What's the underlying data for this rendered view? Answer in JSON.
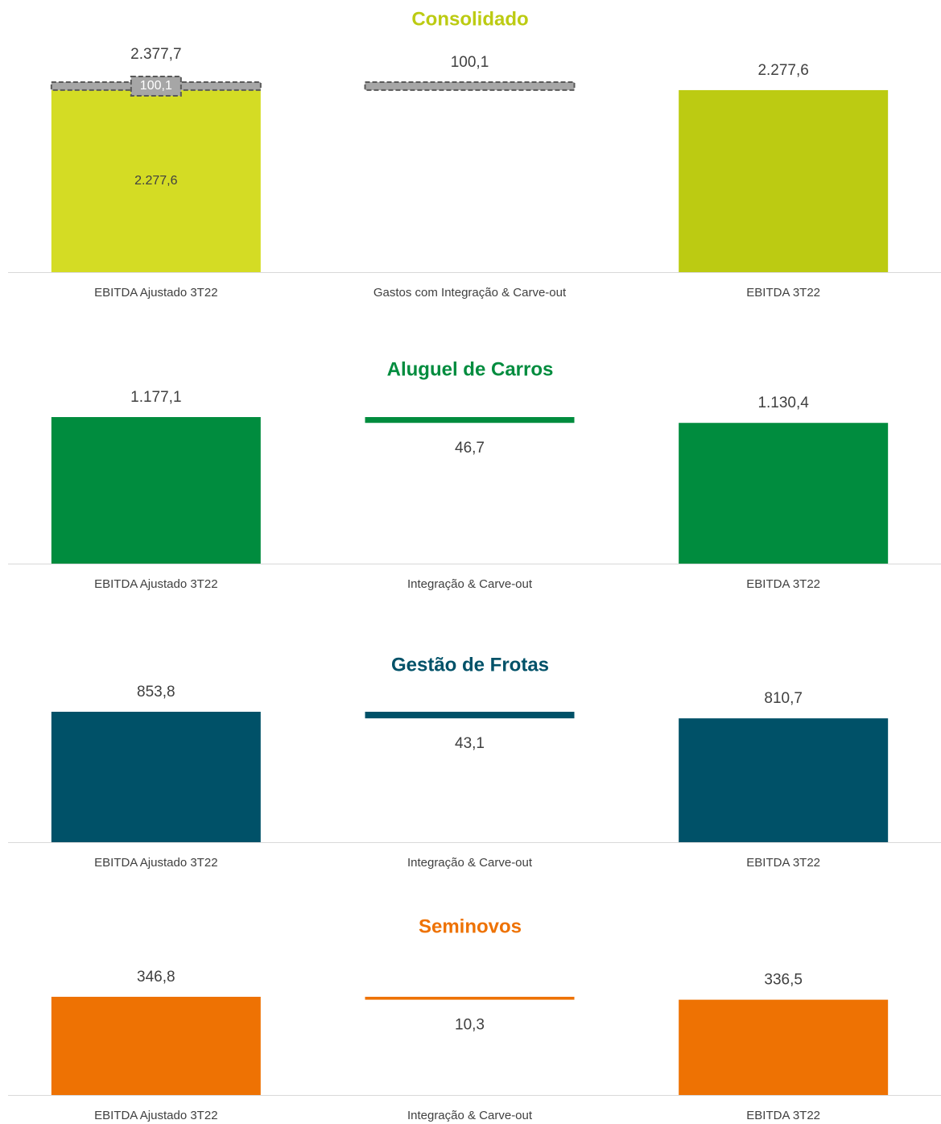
{
  "chart_data": [
    {
      "type": "waterfall",
      "title": "Consolidado",
      "title_color": "#bccb12",
      "categories": [
        "EBITDA Ajustado 3T22",
        "Gastos com Integração & Carve-out",
        "EBITDA 3T22"
      ],
      "measure": [
        "total",
        "decrease",
        "total"
      ],
      "segments": [
        {
          "values": [
            2277.6,
            null,
            2277.6
          ],
          "colors": [
            "#d4dc24",
            null,
            "#bccb12"
          ],
          "value_labels": [
            "2.277,6",
            null,
            "2.277,6"
          ]
        },
        {
          "values": [
            100.1,
            100.1,
            null
          ],
          "color": "#a6a6a6",
          "dashed": true,
          "value_labels": [
            "100,1",
            "100,1",
            null
          ]
        }
      ],
      "totals": [
        2377.7,
        null,
        null
      ],
      "total_labels": [
        "2.377,7",
        null,
        null
      ]
    },
    {
      "type": "waterfall",
      "title": "Aluguel de Carros",
      "title_color": "#008c3e",
      "categories": [
        "EBITDA Ajustado 3T22",
        "Integração & Carve-out",
        "EBITDA 3T22"
      ],
      "measure": [
        "total",
        "decrease",
        "total"
      ],
      "segments": [
        {
          "values": [
            1177.1,
            46.7,
            1130.4
          ],
          "color": "#008c3e",
          "value_labels": [
            "1.177,1",
            "46,7",
            "1.130,4"
          ]
        }
      ]
    },
    {
      "type": "waterfall",
      "title": "Gestão de Frotas",
      "title_color": "#005168",
      "categories": [
        "EBITDA Ajustado 3T22",
        "Integração & Carve-out",
        "EBITDA 3T22"
      ],
      "measure": [
        "total",
        "decrease",
        "total"
      ],
      "segments": [
        {
          "values": [
            853.8,
            43.1,
            810.7
          ],
          "color": "#005168",
          "value_labels": [
            "853,8",
            "43,1",
            "810,7"
          ]
        }
      ]
    },
    {
      "type": "waterfall",
      "title": "Seminovos",
      "title_color": "#ee7203",
      "categories": [
        "EBITDA Ajustado 3T22",
        "Integração & Carve-out",
        "EBITDA 3T22"
      ],
      "measure": [
        "total",
        "decrease",
        "total"
      ],
      "segments": [
        {
          "values": [
            346.8,
            10.3,
            336.5
          ],
          "color": "#ee7203",
          "value_labels": [
            "346,8",
            "10,3",
            "336,5"
          ]
        }
      ]
    }
  ]
}
